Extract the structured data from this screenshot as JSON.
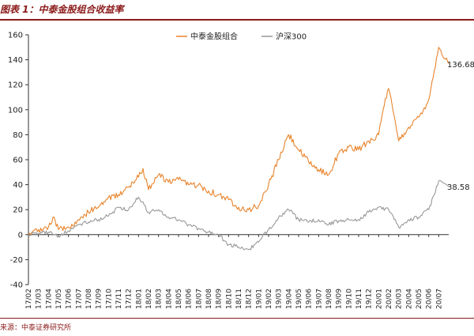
{
  "figure": {
    "title": "图表 1：中泰金股组合收益率",
    "source": "来源：中泰证券研究所"
  },
  "chart_data": {
    "type": "line",
    "title": "图表 1：中泰金股组合收益率",
    "xlabel": "",
    "ylabel": "",
    "ylim": [
      -40,
      160
    ],
    "yticks": [
      -40,
      -20,
      0,
      20,
      40,
      60,
      80,
      100,
      120,
      140,
      160
    ],
    "x_ticks": [
      "17/02",
      "17/03",
      "17/04",
      "17/05",
      "17/06",
      "17/07",
      "17/08",
      "17/09",
      "17/10",
      "17/11",
      "17/12",
      "18/01",
      "18/02",
      "18/03",
      "18/04",
      "18/05",
      "18/06",
      "18/07",
      "18/08",
      "18/09",
      "18/10",
      "18/11",
      "18/12",
      "19/01",
      "19/02",
      "19/03",
      "19/04",
      "19/05",
      "19/06",
      "19/07",
      "19/08",
      "19/09",
      "19/10",
      "19/11",
      "19/12",
      "20/01",
      "20/02",
      "20/03",
      "20/04",
      "20/05",
      "20/06",
      "20/07"
    ],
    "x_range": [
      "17/02",
      "20/08"
    ],
    "grid": false,
    "legend_position": "top",
    "series": [
      {
        "name": "中泰金股组合",
        "color": "#e8842c",
        "end_label": "136.68",
        "points": [
          [
            "17/02",
            0
          ],
          [
            "17/03",
            4
          ],
          [
            "17/04",
            6
          ],
          [
            "17/04",
            14
          ],
          [
            "17/05",
            4
          ],
          [
            "17/06",
            6
          ],
          [
            "17/07",
            12
          ],
          [
            "17/08",
            18
          ],
          [
            "17/09",
            22
          ],
          [
            "17/10",
            30
          ],
          [
            "17/11",
            32
          ],
          [
            "17/12",
            38
          ],
          [
            "18/01",
            46
          ],
          [
            "18/01",
            53
          ],
          [
            "18/02",
            36
          ],
          [
            "18/03",
            48
          ],
          [
            "18/04",
            42
          ],
          [
            "18/05",
            44
          ],
          [
            "18/06",
            40
          ],
          [
            "18/07",
            40
          ],
          [
            "18/08",
            35
          ],
          [
            "18/09",
            32
          ],
          [
            "18/10",
            28
          ],
          [
            "18/11",
            22
          ],
          [
            "18/12",
            20
          ],
          [
            "19/01",
            23
          ],
          [
            "19/02",
            40
          ],
          [
            "19/03",
            60
          ],
          [
            "19/04",
            80
          ],
          [
            "19/05",
            68
          ],
          [
            "19/06",
            58
          ],
          [
            "19/07",
            52
          ],
          [
            "19/08",
            48
          ],
          [
            "19/09",
            65
          ],
          [
            "19/10",
            70
          ],
          [
            "19/11",
            68
          ],
          [
            "19/12",
            75
          ],
          [
            "20/01",
            80
          ],
          [
            "20/01",
            100
          ],
          [
            "20/02",
            117
          ],
          [
            "20/03",
            75
          ],
          [
            "20/04",
            86
          ],
          [
            "20/05",
            94
          ],
          [
            "20/06",
            108
          ],
          [
            "20/07",
            150
          ],
          [
            "20/08",
            136.68
          ]
        ]
      },
      {
        "name": "沪深300",
        "color": "#999999",
        "end_label": "38.58",
        "points": [
          [
            "17/02",
            0
          ],
          [
            "17/03",
            1
          ],
          [
            "17/04",
            2
          ],
          [
            "17/05",
            -1
          ],
          [
            "17/06",
            3
          ],
          [
            "17/07",
            8
          ],
          [
            "17/08",
            10
          ],
          [
            "17/09",
            12
          ],
          [
            "17/10",
            15
          ],
          [
            "17/11",
            22
          ],
          [
            "17/12",
            20
          ],
          [
            "18/01",
            30
          ],
          [
            "18/02",
            18
          ],
          [
            "18/03",
            20
          ],
          [
            "18/04",
            14
          ],
          [
            "18/05",
            12
          ],
          [
            "18/06",
            8
          ],
          [
            "18/07",
            5
          ],
          [
            "18/08",
            2
          ],
          [
            "18/09",
            0
          ],
          [
            "18/10",
            -8
          ],
          [
            "18/11",
            -10
          ],
          [
            "18/12",
            -12
          ],
          [
            "19/01",
            -6
          ],
          [
            "19/02",
            4
          ],
          [
            "19/03",
            14
          ],
          [
            "19/04",
            20
          ],
          [
            "19/05",
            12
          ],
          [
            "19/06",
            10
          ],
          [
            "19/07",
            12
          ],
          [
            "19/08",
            8
          ],
          [
            "19/09",
            11
          ],
          [
            "19/10",
            12
          ],
          [
            "19/11",
            12
          ],
          [
            "19/12",
            18
          ],
          [
            "20/01",
            22
          ],
          [
            "20/02",
            20
          ],
          [
            "20/03",
            6
          ],
          [
            "20/04",
            12
          ],
          [
            "20/05",
            14
          ],
          [
            "20/06",
            20
          ],
          [
            "20/07",
            43
          ],
          [
            "20/08",
            38.58
          ]
        ]
      }
    ]
  }
}
